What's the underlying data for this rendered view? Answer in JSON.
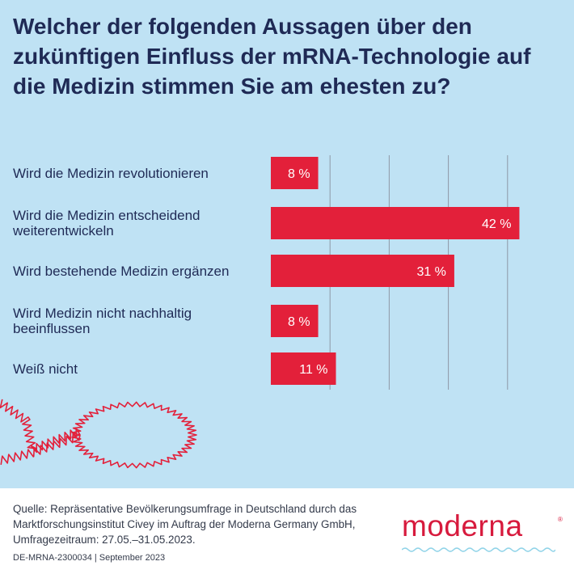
{
  "chart_data": {
    "type": "bar",
    "orientation": "horizontal",
    "title": "Welcher der folgenden Aussagen über den zukünftigen Einfluss der mRNA-Technologie auf die Medizin stimmen Sie am ehesten zu?",
    "categories": [
      [
        "Wird die Medizin revolutionieren"
      ],
      [
        "Wird die Medizin entscheidend",
        "weiterentwickeln"
      ],
      [
        "Wird bestehende Medizin ergänzen"
      ],
      [
        "Wird Medizin nicht nachhaltig",
        "beeinflussen"
      ],
      [
        "Weiß nicht"
      ]
    ],
    "values": [
      8,
      42,
      31,
      8,
      11
    ],
    "value_labels": [
      "8 %",
      "42 %",
      "31 %",
      "8 %",
      "11 %"
    ],
    "xlim": [
      0,
      50
    ],
    "gridlines_at": [
      10,
      20,
      30,
      40
    ],
    "grid": true,
    "bar_color": "#e3203a",
    "label_color": "#ffffff"
  },
  "footer": {
    "source": "Quelle: Repräsentative Bevölkerungsumfrage in Deutschland durch das Marktforschungsinstitut Civey im Auftrag der Moderna Germany GmbH, Umfragezeitraum: 27.05.–31.05.2023.",
    "code": "DE-MRNA-2300034 | September 2023",
    "logo": "moderna",
    "logo_mark": "®"
  }
}
